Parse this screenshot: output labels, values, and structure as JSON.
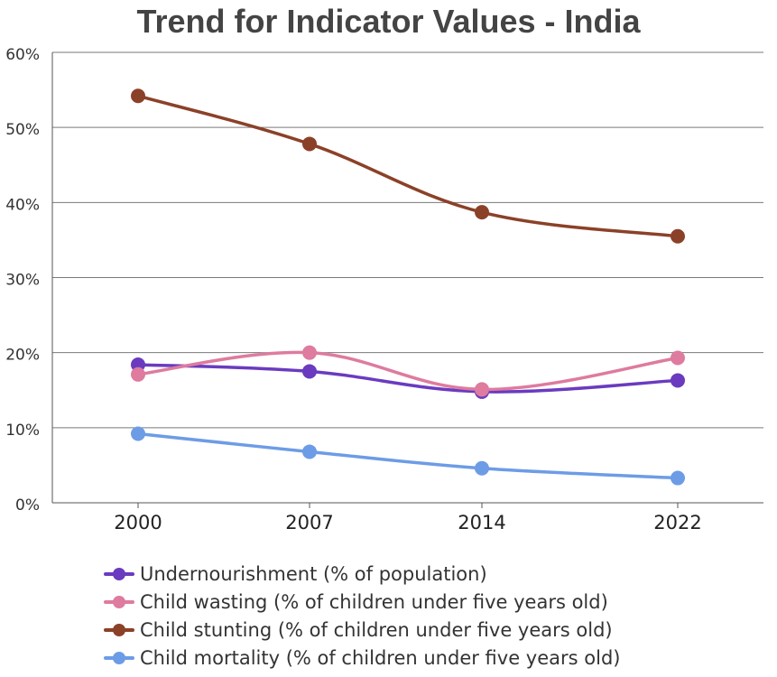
{
  "chart_data": {
    "type": "line",
    "title": "Trend for Indicator Values - India",
    "categories": [
      "2000",
      "2007",
      "2014",
      "2022"
    ],
    "xlabel": "",
    "ylabel": "",
    "ylim": [
      0,
      60
    ],
    "y_ticks": [
      "0%",
      "10%",
      "20%",
      "30%",
      "40%",
      "50%",
      "60%"
    ],
    "grid": true,
    "legend_position": "bottom",
    "series": [
      {
        "name": "Undernourishment (% of population)",
        "color": "#6a3bbf",
        "values": [
          18.4,
          17.5,
          14.8,
          16.3
        ]
      },
      {
        "name": "Child wasting (% of children under five years old)",
        "color": "#de7b9f",
        "values": [
          17.1,
          20.0,
          15.1,
          19.3
        ]
      },
      {
        "name": "Child stunting (% of children under five years old)",
        "color": "#8b4128",
        "values": [
          54.2,
          47.8,
          38.7,
          35.5
        ]
      },
      {
        "name": "Child mortality (% of children under five years old)",
        "color": "#6d9ce6",
        "values": [
          9.2,
          6.8,
          4.6,
          3.3
        ]
      }
    ]
  }
}
